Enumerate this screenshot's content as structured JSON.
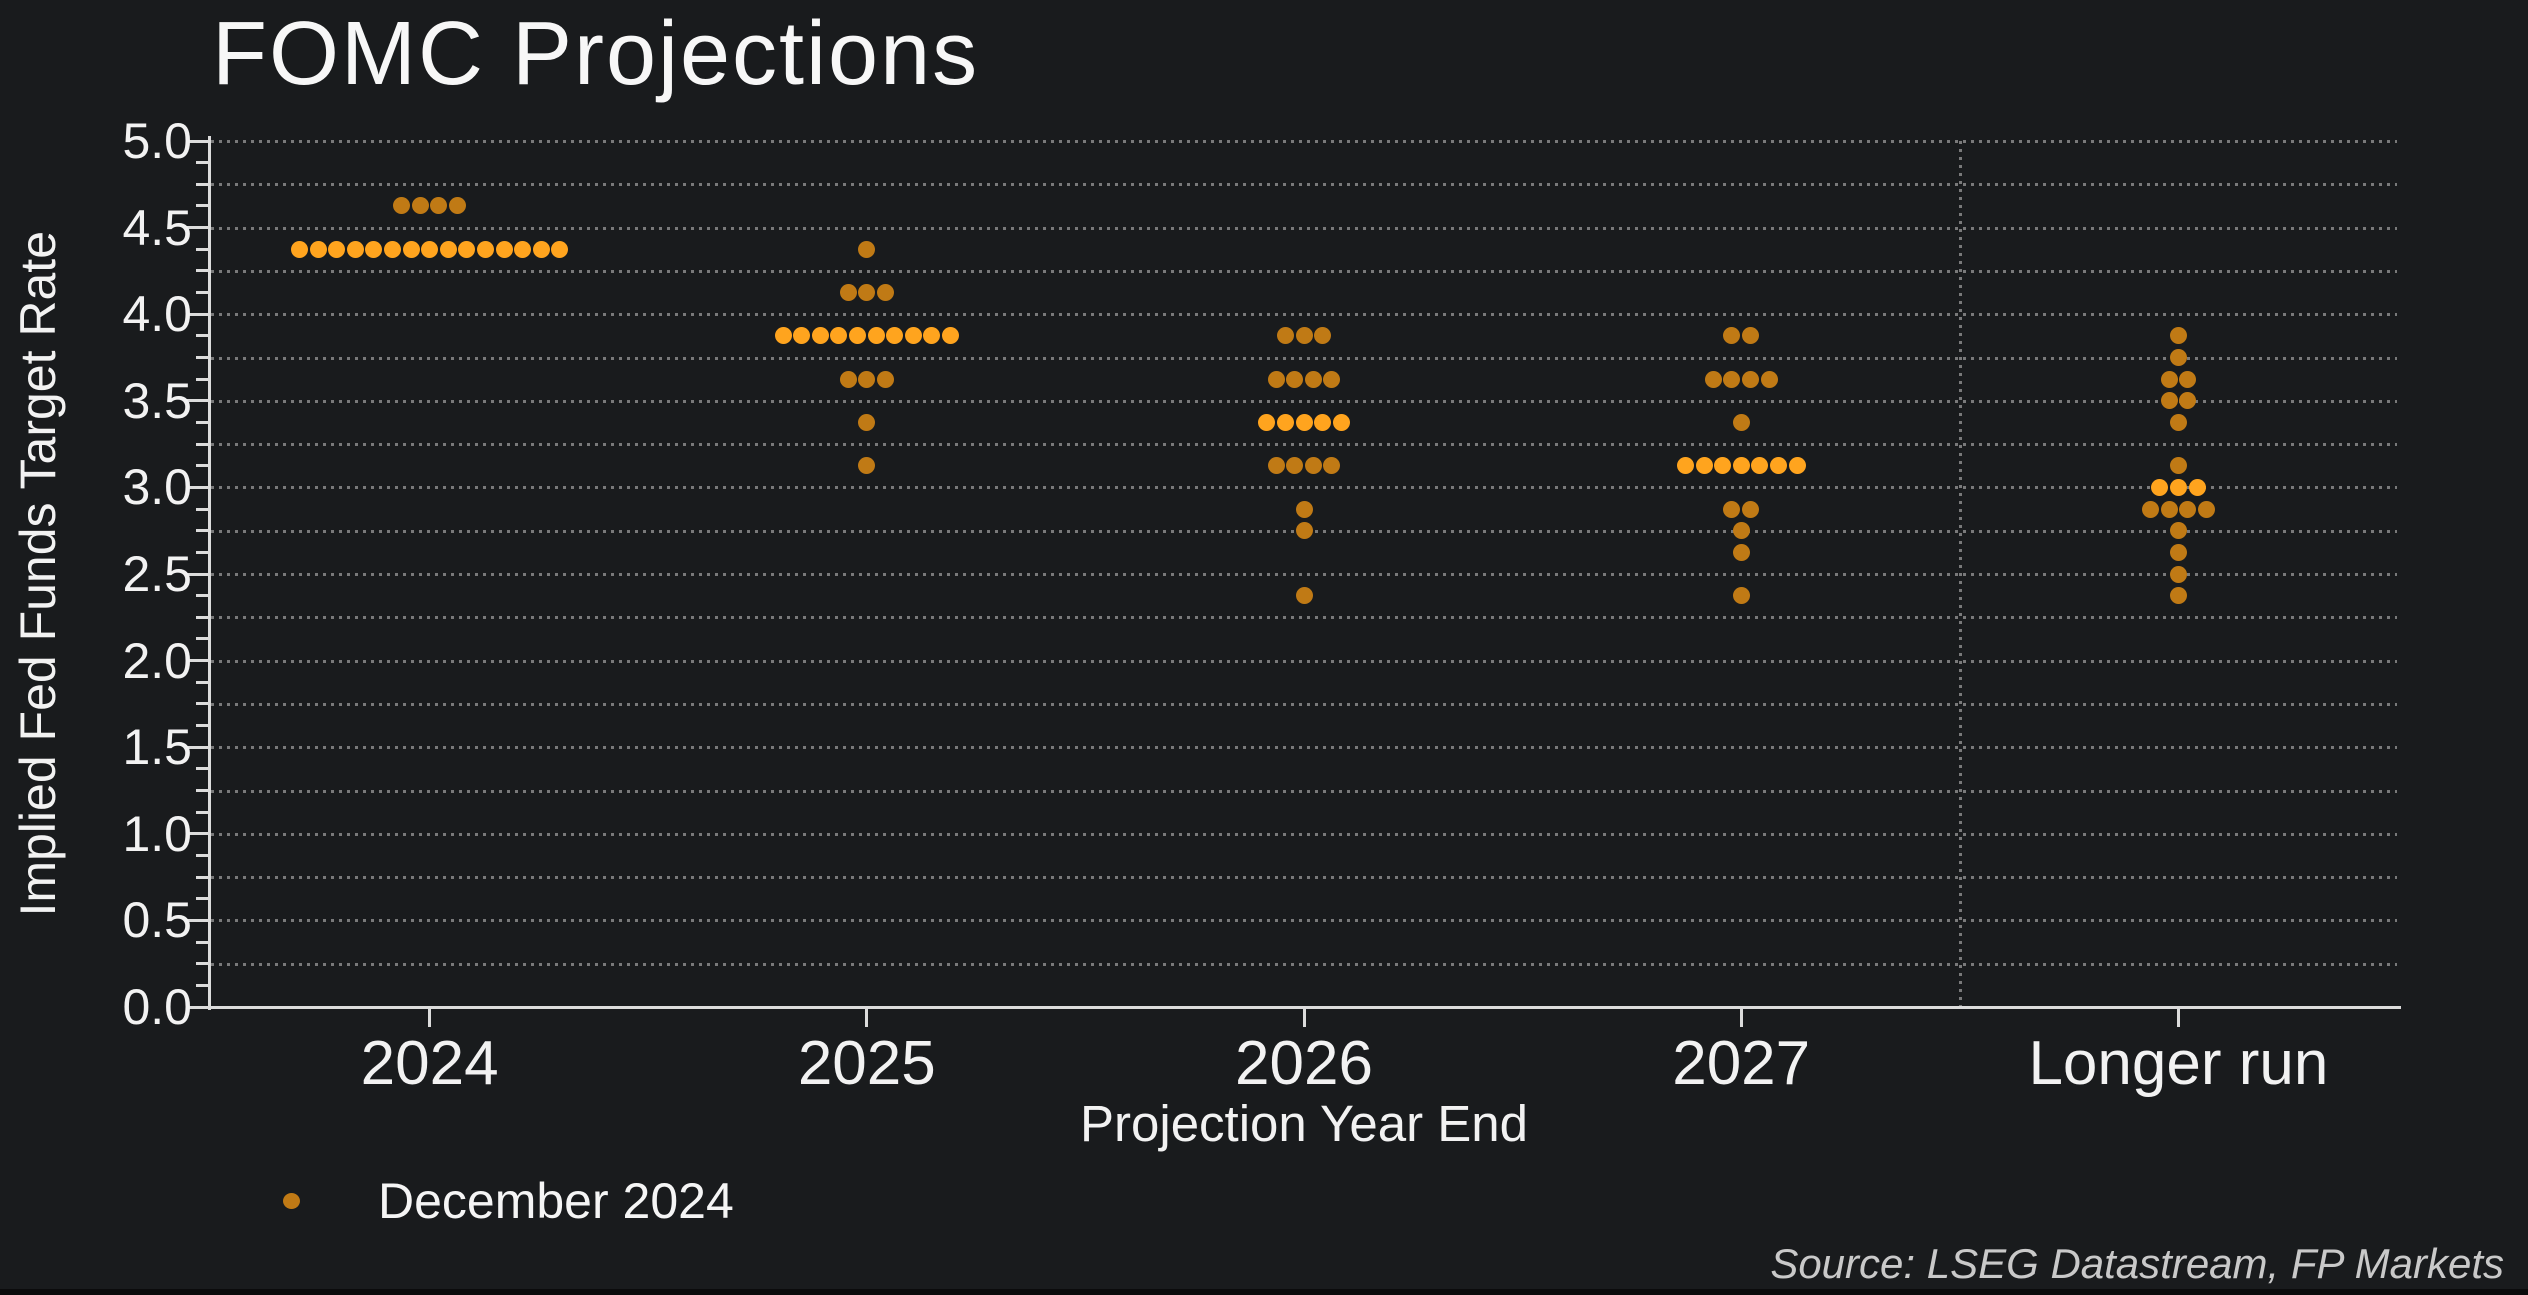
{
  "title": "FOMC Projections",
  "source": "Source: LSEG Datastream, FP Markets",
  "legend": {
    "label": "December 2024"
  },
  "axes": {
    "xlabel": "Projection Year End",
    "ylabel": "Implied Fed Funds Target Rate",
    "ytick_labels": [
      "5.0",
      "4.5",
      "4.0",
      "3.5",
      "3.0",
      "2.5",
      "2.0",
      "1.5",
      "1.0",
      "0.5",
      "0.0"
    ]
  },
  "colors": {
    "background": "#191b1d",
    "dot": "#c07a15",
    "dot_median": "#ffa41e",
    "grid": "#8a8a8a",
    "axis": "#dcdcdc",
    "text": "#f2f2f2",
    "source_text": "#c9c9c9"
  },
  "chart_data": {
    "type": "scatter",
    "subtype": "fomc-dot-plot",
    "title": "FOMC Projections",
    "xlabel": "Projection Year End",
    "ylabel": "Implied Fed Funds Target Rate",
    "categories": [
      "2024",
      "2025",
      "2026",
      "2027",
      "Longer run"
    ],
    "ylim": [
      0.0,
      5.0
    ],
    "ytick_label_step": 0.5,
    "grid_step": 0.25,
    "minor_tick_step": 0.125,
    "grid_style": "dotted",
    "separator_before_category": "Longer run",
    "legend_position": "bottom-left",
    "series": [
      {
        "name": "December 2024",
        "columns": [
          {
            "category": "2024",
            "dots": [
              {
                "rate": 4.625,
                "count": 4
              },
              {
                "rate": 4.375,
                "count": 15,
                "median": true
              }
            ]
          },
          {
            "category": "2025",
            "dots": [
              {
                "rate": 4.375,
                "count": 1
              },
              {
                "rate": 4.125,
                "count": 3
              },
              {
                "rate": 3.875,
                "count": 10,
                "median": true
              },
              {
                "rate": 3.625,
                "count": 3
              },
              {
                "rate": 3.375,
                "count": 1
              },
              {
                "rate": 3.125,
                "count": 1
              }
            ]
          },
          {
            "category": "2026",
            "dots": [
              {
                "rate": 3.875,
                "count": 3
              },
              {
                "rate": 3.625,
                "count": 4
              },
              {
                "rate": 3.375,
                "count": 5,
                "median": true
              },
              {
                "rate": 3.125,
                "count": 4
              },
              {
                "rate": 2.875,
                "count": 1
              },
              {
                "rate": 2.75,
                "count": 1
              },
              {
                "rate": 2.375,
                "count": 1
              }
            ]
          },
          {
            "category": "2027",
            "dots": [
              {
                "rate": 3.875,
                "count": 2
              },
              {
                "rate": 3.625,
                "count": 4
              },
              {
                "rate": 3.375,
                "count": 1
              },
              {
                "rate": 3.125,
                "count": 7,
                "median": true
              },
              {
                "rate": 2.875,
                "count": 2
              },
              {
                "rate": 2.75,
                "count": 1
              },
              {
                "rate": 2.625,
                "count": 1
              },
              {
                "rate": 2.375,
                "count": 1
              }
            ]
          },
          {
            "category": "Longer run",
            "dots": [
              {
                "rate": 3.875,
                "count": 1
              },
              {
                "rate": 3.75,
                "count": 1
              },
              {
                "rate": 3.625,
                "count": 2
              },
              {
                "rate": 3.5,
                "count": 2
              },
              {
                "rate": 3.375,
                "count": 1
              },
              {
                "rate": 3.125,
                "count": 1
              },
              {
                "rate": 3.0,
                "count": 3,
                "median": true
              },
              {
                "rate": 2.875,
                "count": 4
              },
              {
                "rate": 2.75,
                "count": 1
              },
              {
                "rate": 2.625,
                "count": 1
              },
              {
                "rate": 2.5,
                "count": 1
              },
              {
                "rate": 2.375,
                "count": 1
              }
            ]
          }
        ]
      }
    ]
  }
}
